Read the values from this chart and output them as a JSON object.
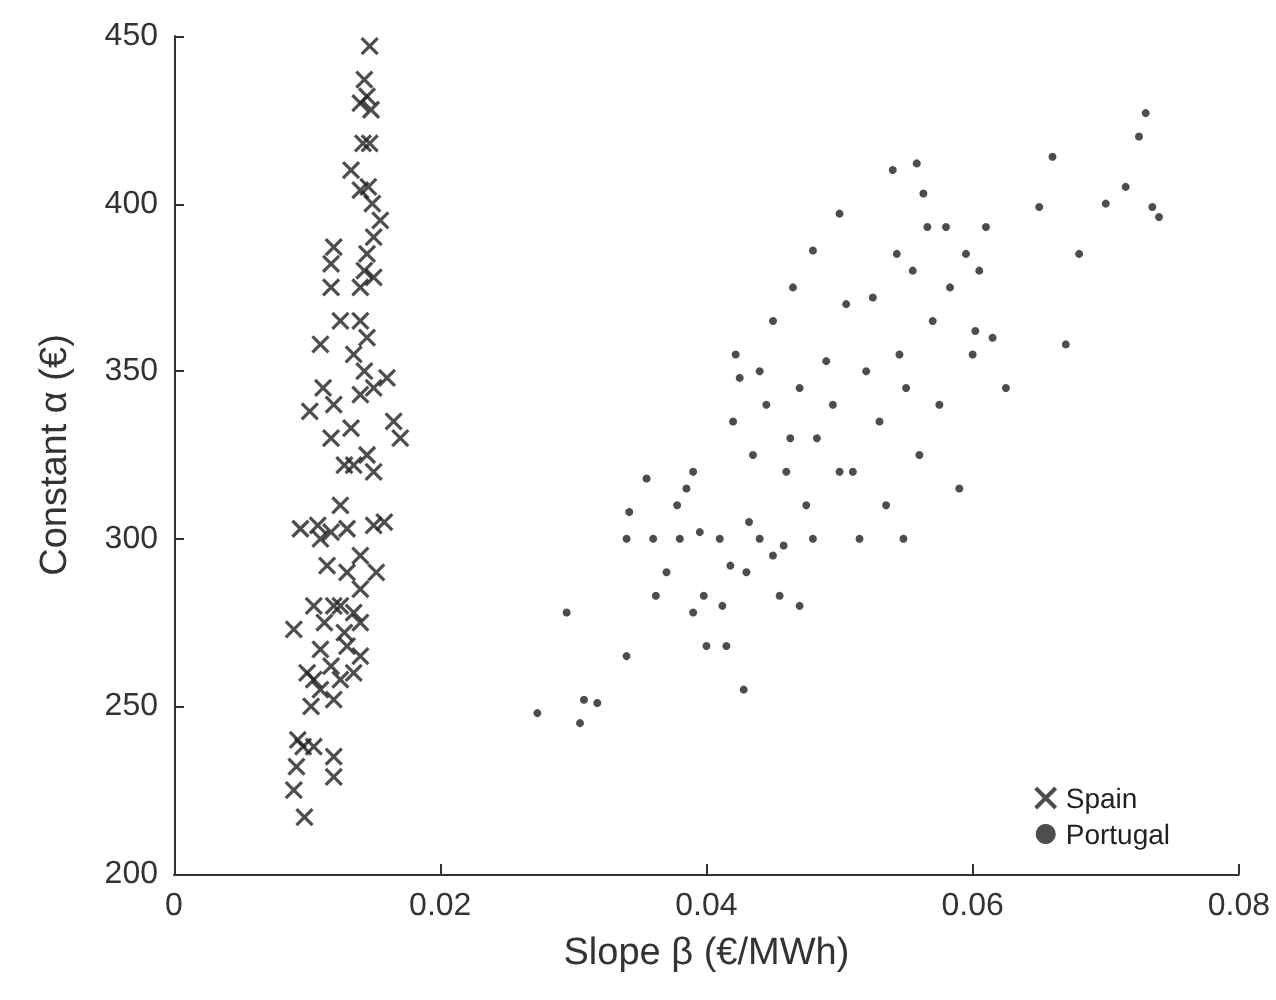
{
  "chart_data": {
    "type": "scatter",
    "xlabel": "Slope β (€/MWh)",
    "ylabel": "Constant α (€)",
    "xlim": [
      0,
      0.08
    ],
    "xticks": [
      0,
      0.02,
      0.04,
      0.06,
      0.08
    ],
    "ylim": [
      200,
      450
    ],
    "yticks": [
      200,
      250,
      300,
      350,
      400,
      450
    ],
    "grid": false,
    "legend": "bottom right",
    "series": [
      {
        "name": "Spain",
        "color": "#231f20",
        "marker": "cross",
        "x": [
          0.0147,
          0.0143,
          0.0145,
          0.014,
          0.0148,
          0.0147,
          0.0142,
          0.0133,
          0.0146,
          0.014,
          0.0149,
          0.0155,
          0.015,
          0.0145,
          0.012,
          0.0118,
          0.0143,
          0.015,
          0.014,
          0.0118,
          0.0125,
          0.014,
          0.0145,
          0.0135,
          0.011,
          0.0143,
          0.016,
          0.015,
          0.014,
          0.0112,
          0.012,
          0.0165,
          0.017,
          0.0133,
          0.0102,
          0.0118,
          0.015,
          0.0145,
          0.0135,
          0.0128,
          0.0158,
          0.015,
          0.0125,
          0.013,
          0.0108,
          0.0118,
          0.0095,
          0.011,
          0.014,
          0.0152,
          0.0115,
          0.013,
          0.014,
          0.0125,
          0.012,
          0.0135,
          0.0105,
          0.0113,
          0.014,
          0.0128,
          0.009,
          0.013,
          0.011,
          0.0118,
          0.014,
          0.01,
          0.0105,
          0.0125,
          0.0135,
          0.011,
          0.0103,
          0.012,
          0.0093,
          0.0097,
          0.0105,
          0.012,
          0.0092,
          0.012,
          0.009,
          0.0098
        ],
        "values": [
          447,
          437,
          432,
          430,
          428,
          418,
          418,
          410,
          405,
          404,
          400,
          395,
          390,
          385,
          387,
          382,
          380,
          378,
          375,
          375,
          365,
          365,
          360,
          355,
          358,
          350,
          348,
          345,
          343,
          345,
          340,
          335,
          330,
          333,
          338,
          330,
          320,
          325,
          322,
          322,
          305,
          304,
          310,
          303,
          304,
          302,
          303,
          300,
          295,
          290,
          292,
          290,
          285,
          280,
          280,
          278,
          280,
          275,
          275,
          272,
          273,
          268,
          267,
          262,
          265,
          260,
          258,
          258,
          260,
          255,
          250,
          252,
          240,
          238,
          238,
          235,
          232,
          229,
          225,
          217
        ]
      },
      {
        "name": "Portugal",
        "color": "#231f20",
        "marker": "circle",
        "x": [
          0.0273,
          0.0295,
          0.0305,
          0.0308,
          0.0318,
          0.034,
          0.034,
          0.0342,
          0.0355,
          0.036,
          0.0362,
          0.037,
          0.038,
          0.0378,
          0.0385,
          0.039,
          0.0395,
          0.039,
          0.04,
          0.0398,
          0.041,
          0.0412,
          0.0415,
          0.0418,
          0.042,
          0.0422,
          0.0425,
          0.0428,
          0.043,
          0.0432,
          0.0435,
          0.044,
          0.044,
          0.0445,
          0.045,
          0.045,
          0.0455,
          0.0458,
          0.046,
          0.0463,
          0.0465,
          0.047,
          0.047,
          0.0475,
          0.048,
          0.048,
          0.0483,
          0.049,
          0.0495,
          0.05,
          0.05,
          0.0505,
          0.051,
          0.0515,
          0.052,
          0.0525,
          0.053,
          0.0535,
          0.054,
          0.0543,
          0.0545,
          0.0548,
          0.055,
          0.0555,
          0.0558,
          0.056,
          0.0563,
          0.0566,
          0.057,
          0.0575,
          0.058,
          0.0583,
          0.059,
          0.0595,
          0.06,
          0.0602,
          0.0605,
          0.061,
          0.0615,
          0.0625,
          0.065,
          0.066,
          0.067,
          0.068,
          0.07,
          0.0715,
          0.0725,
          0.073,
          0.0735,
          0.074
        ],
        "values": [
          248,
          278,
          245,
          252,
          251,
          265,
          300,
          308,
          318,
          300,
          283,
          290,
          300,
          310,
          315,
          320,
          302,
          278,
          268,
          283,
          300,
          280,
          268,
          292,
          335,
          355,
          348,
          255,
          290,
          305,
          325,
          300,
          350,
          340,
          365,
          295,
          283,
          298,
          320,
          330,
          375,
          345,
          280,
          310,
          300,
          386,
          330,
          353,
          340,
          320,
          397,
          370,
          320,
          300,
          350,
          372,
          335,
          310,
          410,
          385,
          355,
          300,
          345,
          380,
          412,
          325,
          403,
          393,
          365,
          340,
          393,
          375,
          315,
          385,
          355,
          362,
          380,
          393,
          360,
          345,
          399,
          414,
          358,
          385,
          400,
          405,
          420,
          427,
          399,
          396
        ]
      }
    ]
  }
}
